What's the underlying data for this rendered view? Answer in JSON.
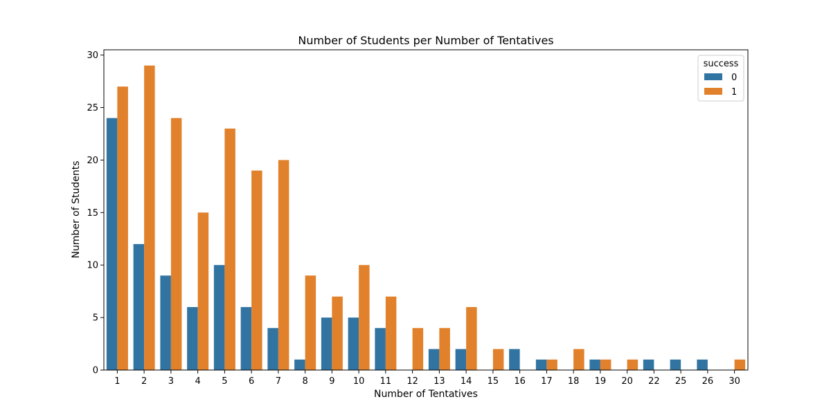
{
  "chart_data": {
    "type": "bar",
    "title": "Number of Students per Number of Tentatives",
    "xlabel": "Number of Tentatives",
    "ylabel": "Number of Students",
    "categories": [
      "1",
      "2",
      "3",
      "4",
      "5",
      "6",
      "7",
      "8",
      "9",
      "10",
      "11",
      "12",
      "13",
      "14",
      "15",
      "16",
      "17",
      "18",
      "19",
      "20",
      "22",
      "25",
      "26",
      "30"
    ],
    "series": [
      {
        "name": "0",
        "color": "#3274a1",
        "values": [
          24,
          12,
          9,
          6,
          10,
          6,
          4,
          1,
          5,
          5,
          4,
          0,
          2,
          2,
          0,
          2,
          1,
          0,
          1,
          0,
          1,
          1,
          1,
          0
        ]
      },
      {
        "name": "1",
        "color": "#e1812c",
        "values": [
          27,
          29,
          24,
          15,
          23,
          19,
          20,
          9,
          7,
          10,
          7,
          4,
          4,
          6,
          2,
          0,
          1,
          2,
          1,
          1,
          0,
          0,
          0,
          1
        ]
      }
    ],
    "ylim": [
      0,
      30.5
    ],
    "yticks": [
      0,
      5,
      10,
      15,
      20,
      25,
      30
    ],
    "grid": false,
    "legend": {
      "title": "success",
      "placement": "top-right"
    }
  }
}
